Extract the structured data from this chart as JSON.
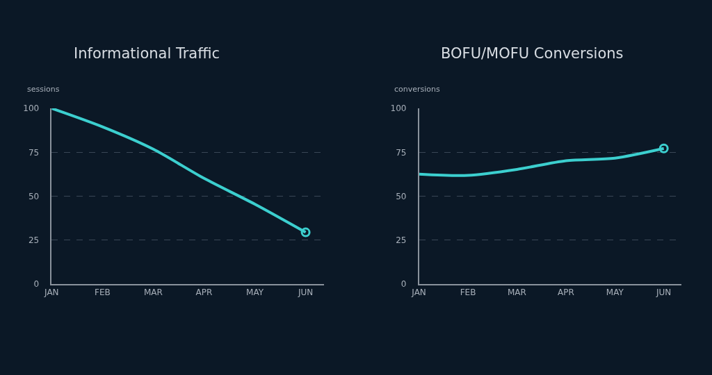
{
  "chart_data": [
    {
      "type": "line",
      "title": "Informational Traffic",
      "ylabel": "sessions",
      "categories": [
        "JAN",
        "FEB",
        "MAR",
        "APR",
        "MAY",
        "JUN"
      ],
      "series": [
        {
          "color": "#3ccfcf",
          "values": [
            100,
            89.5,
            76.8,
            60.2,
            45.5,
            29.5
          ]
        },
        {
          "type": "scatter",
          "x": [
            "JUN"
          ],
          "color": "#3ccfcf",
          "marker": "circle",
          "values": [
            29.5
          ]
        }
      ],
      "ylim": [
        0,
        100
      ],
      "yticks": [
        0,
        25,
        50,
        75,
        100
      ],
      "grid": "y",
      "marker": "none",
      "line_style": "solid"
    },
    {
      "type": "line",
      "title": "BOFU/MOFU Conversions",
      "ylabel": "conversions",
      "categories": [
        "JAN",
        "FEB",
        "MAR",
        "APR",
        "MAY",
        "JUN"
      ],
      "series": [
        {
          "color": "#3ccfcf",
          "values": [
            62.6,
            61.9,
            65.3,
            70.2,
            71.7,
            77.2
          ]
        },
        {
          "type": "scatter",
          "x": [
            "JUN"
          ],
          "color": "#3ccfcf",
          "marker": "circle",
          "values": [
            77.2
          ]
        }
      ],
      "ylim": [
        0,
        100
      ],
      "yticks": [
        0,
        25,
        50,
        75,
        100
      ],
      "grid": "y",
      "marker": "none",
      "line_style": "solid"
    }
  ]
}
